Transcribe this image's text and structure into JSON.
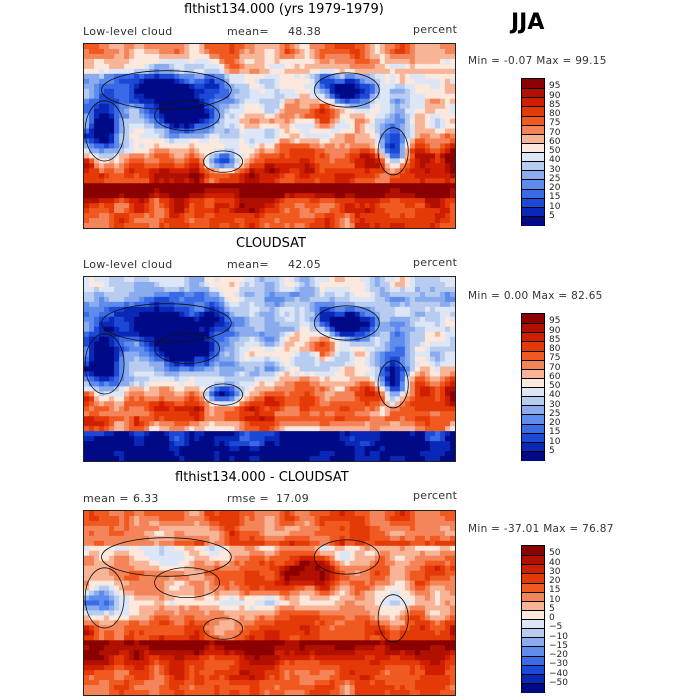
{
  "figure": {
    "season": "JJA",
    "units_label": "percent"
  },
  "chart_data": [
    {
      "type": "heatmap",
      "title": "flthist134.000 (yrs 1979-1979)",
      "field": "Low-level cloud",
      "stat_label": "mean=",
      "stat_value": "48.38",
      "units": "percent",
      "range_text": "Min =   -0.07 Max =   99.15",
      "min": -0.07,
      "max": 99.15,
      "contour_levels": [
        "95",
        "90",
        "85",
        "80",
        "75",
        "70",
        "60",
        "50",
        "40",
        "30",
        "25",
        "20",
        "15",
        "10",
        "5"
      ],
      "colors": [
        "#8b0000",
        "#b01000",
        "#d01e00",
        "#e43a08",
        "#f05a20",
        "#f4845a",
        "#f8b496",
        "#fce8dc",
        "#dce6f6",
        "#b8ccf0",
        "#8aacee",
        "#5e8cec",
        "#3a6ae6",
        "#1c48d6",
        "#0a28b8",
        "#000a86"
      ]
    },
    {
      "type": "heatmap",
      "title": "CLOUDSAT",
      "field": "Low-level cloud",
      "stat_label": "mean=",
      "stat_value": "42.05",
      "units": "percent",
      "range_text": "Min =    0.00 Max =   82.65",
      "min": 0.0,
      "max": 82.65,
      "contour_levels": [
        "95",
        "90",
        "85",
        "80",
        "75",
        "70",
        "60",
        "50",
        "40",
        "30",
        "25",
        "20",
        "15",
        "10",
        "5"
      ],
      "colors": [
        "#8b0000",
        "#b01000",
        "#d01e00",
        "#e43a08",
        "#f05a20",
        "#f4845a",
        "#f8b496",
        "#fce8dc",
        "#dce6f6",
        "#b8ccf0",
        "#8aacee",
        "#5e8cec",
        "#3a6ae6",
        "#1c48d6",
        "#0a28b8",
        "#000a86"
      ]
    },
    {
      "type": "heatmap",
      "title": "flthist134.000 - CLOUDSAT",
      "field": "",
      "stat_label": "mean =",
      "stat_value": "6.33",
      "rmse_label": "rmse =",
      "rmse_value": "17.09",
      "units": "percent",
      "range_text": "Min =  -37.01 Max =   76.87",
      "min": -37.01,
      "max": 76.87,
      "contour_levels": [
        "50",
        "40",
        "30",
        "20",
        "15",
        "10",
        "5",
        "0",
        "−5",
        "−10",
        "−15",
        "−20",
        "−30",
        "−40",
        "−50"
      ],
      "colors": [
        "#8b0000",
        "#b01000",
        "#d01e00",
        "#e43a08",
        "#f05a20",
        "#f4845a",
        "#f8b496",
        "#fce8dc",
        "#dce6f6",
        "#b8ccf0",
        "#8aacee",
        "#5e8cec",
        "#3a6ae6",
        "#1c48d6",
        "#0a28b8",
        "#000a86"
      ]
    }
  ]
}
